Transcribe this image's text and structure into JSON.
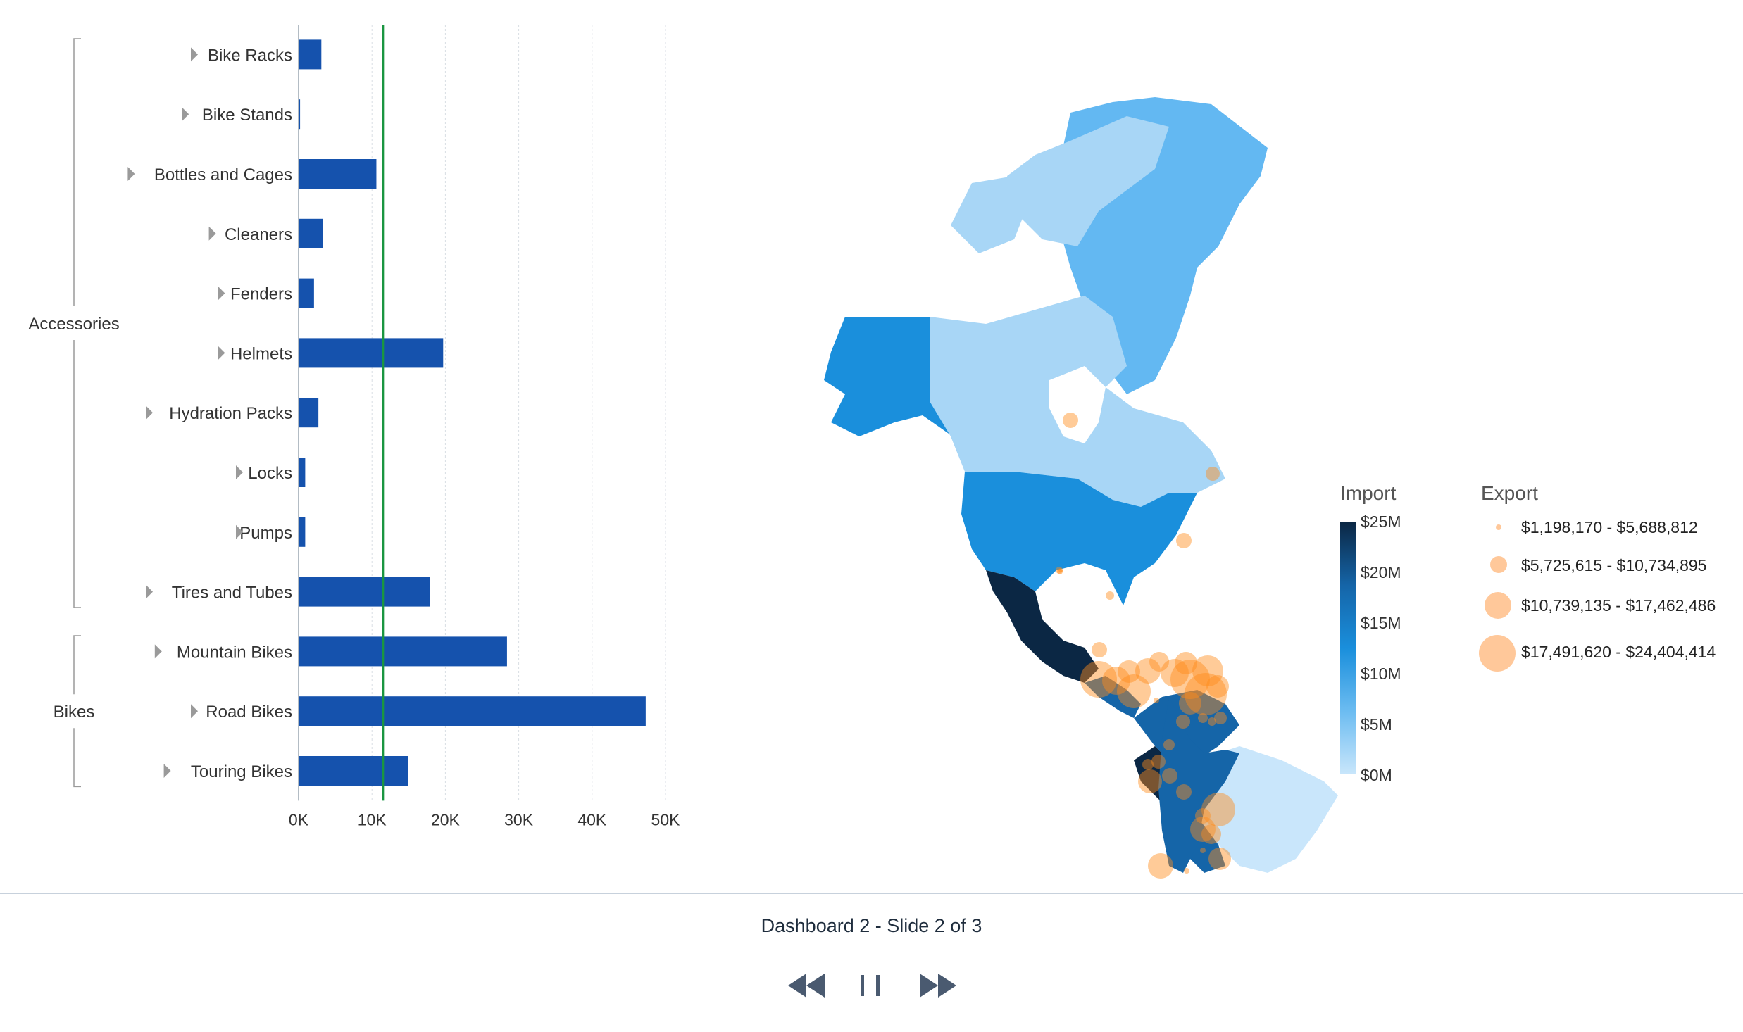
{
  "chart_data": {
    "type": "bar",
    "orientation": "horizontal",
    "groups": [
      {
        "name": "Accessories",
        "categories": [
          "Bike Racks",
          "Bike Stands",
          "Bottles and Cages",
          "Cleaners",
          "Fenders",
          "Helmets",
          "Hydration Packs",
          "Locks",
          "Pumps",
          "Tires and Tubes"
        ]
      },
      {
        "name": "Bikes",
        "categories": [
          "Mountain Bikes",
          "Road Bikes",
          "Touring Bikes"
        ]
      }
    ],
    "categories": [
      "Bike Racks",
      "Bike Stands",
      "Bottles and Cages",
      "Cleaners",
      "Fenders",
      "Helmets",
      "Hydration Packs",
      "Locks",
      "Pumps",
      "Tires and Tubes",
      "Mountain Bikes",
      "Road Bikes",
      "Touring Bikes"
    ],
    "values": [
      3100,
      200,
      10600,
      3300,
      2100,
      19700,
      2700,
      900,
      900,
      17900,
      28400,
      47300,
      14900
    ],
    "reference_line": 11500,
    "xlim": [
      0,
      50000
    ],
    "x_ticks": [
      "0K",
      "10K",
      "20K",
      "30K",
      "40K",
      "50K"
    ],
    "bar_color": "#1552ad",
    "reference_color": "#1a9641"
  },
  "map": {
    "import_title": "Import",
    "import_ticks": [
      "$25M",
      "$20M",
      "$15M",
      "$10M",
      "$5M",
      "$0M"
    ],
    "import_colors": [
      "#0b2744",
      "#1565a8",
      "#1a8fdc",
      "#6cbcf1",
      "#c9e6fb"
    ],
    "export_title": "Export",
    "export_ranges": [
      "$1,198,170 - $5,688,812",
      "$5,725,615 - $10,734,895",
      "$10,739,135 - $17,462,486",
      "$17,491,620 - $24,404,414"
    ],
    "export_color": "#ffb070"
  },
  "footer": {
    "title": "Dashboard 2 - Slide 2 of 3",
    "prev_icon": "rewind-icon",
    "pause_icon": "pause-icon",
    "next_icon": "fast-forward-icon"
  }
}
